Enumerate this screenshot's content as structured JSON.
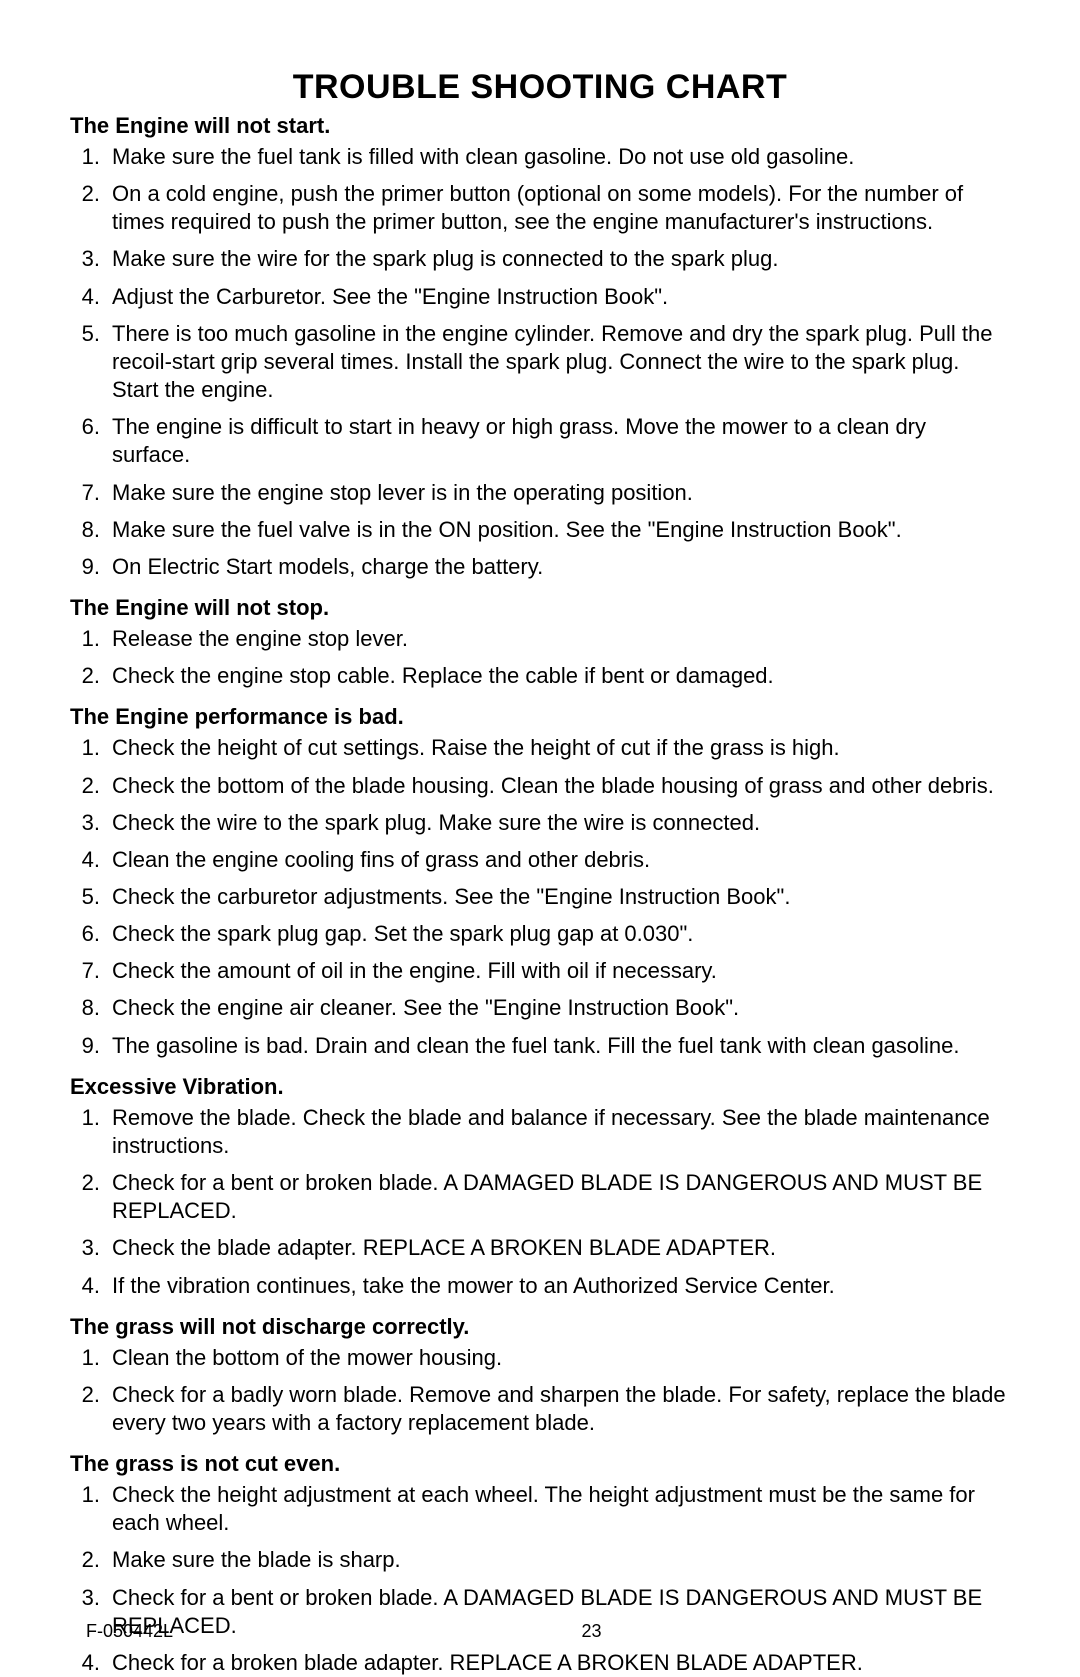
{
  "title": "TROUBLE SHOOTING CHART",
  "title_fontsize": 34,
  "heading_fontsize": 22,
  "body_fontsize": 22,
  "footer_fontsize": 18,
  "sections": [
    {
      "heading": "The Engine will not start.",
      "items": [
        "Make sure the fuel tank is filled with clean gasoline. Do not use old gasoline.",
        "On a cold engine, push the primer button (optional on some models). For the number of times required to push the primer button, see the engine manufacturer's instructions.",
        "Make sure the wire for the spark plug is connected to the spark plug.",
        "Adjust the Carburetor. See the \"Engine Instruction Book\".",
        "There is too much gasoline in the engine cylinder. Remove and dry the spark plug. Pull the recoil-start grip several times. Install the spark plug. Connect the wire to the spark plug. Start the engine.",
        "The engine is difficult to start in heavy or high grass. Move the mower to a clean dry surface.",
        "Make sure the engine stop lever is in the operating position.",
        "Make sure the fuel valve is in the ON position. See the \"Engine Instruction Book\".",
        "On Electric Start models, charge the battery."
      ]
    },
    {
      "heading": "The Engine will not stop.",
      "items": [
        "Release the engine stop lever.",
        "Check the engine stop cable. Replace the cable if bent or damaged."
      ]
    },
    {
      "heading": "The Engine performance is bad.",
      "items": [
        "Check the height of cut settings. Raise the height of cut if the grass is high.",
        "Check the bottom of the blade housing. Clean the blade housing of grass and other debris.",
        "Check the wire to the spark plug. Make sure the wire is connected.",
        "Clean the engine cooling fins of grass and other debris.",
        "Check the carburetor adjustments. See the \"Engine Instruction Book\".",
        "Check the spark plug gap. Set the spark plug gap at 0.030\".",
        "Check the amount of oil in the engine. Fill with oil if necessary.",
        "Check the engine air cleaner. See the \"Engine Instruction Book\".",
        "The gasoline is bad. Drain and clean the fuel tank. Fill the fuel tank with clean gasoline."
      ]
    },
    {
      "heading": "Excessive Vibration.",
      "items": [
        "Remove the blade. Check the blade and balance if necessary. See the blade maintenance instructions.",
        "Check for a bent or broken blade. A DAMAGED BLADE IS DANGEROUS AND MUST BE REPLACED.",
        "Check the blade adapter. REPLACE A BROKEN BLADE ADAPTER.",
        "If the vibration continues, take the mower to an Authorized Service Center."
      ]
    },
    {
      "heading": "The grass will not discharge correctly.",
      "items": [
        "Clean the bottom of the mower housing.",
        "Check for a badly worn blade. Remove and sharpen the blade. For safety, replace the blade every two years with a factory replacement blade."
      ]
    },
    {
      "heading": "The grass is not cut even.",
      "items": [
        "Check the height adjustment at each wheel. The height adjustment must be the same for each wheel.",
        "Make sure the blade is sharp.",
        "Check for a bent or broken blade. A DAMAGED BLADE IS DANGEROUS AND MUST BE REPLACED.",
        "Check for a broken blade adapter. REPLACE A BROKEN BLADE ADAPTER."
      ]
    }
  ],
  "footer": {
    "doc_code": "F-050442L",
    "page_number": "23"
  }
}
